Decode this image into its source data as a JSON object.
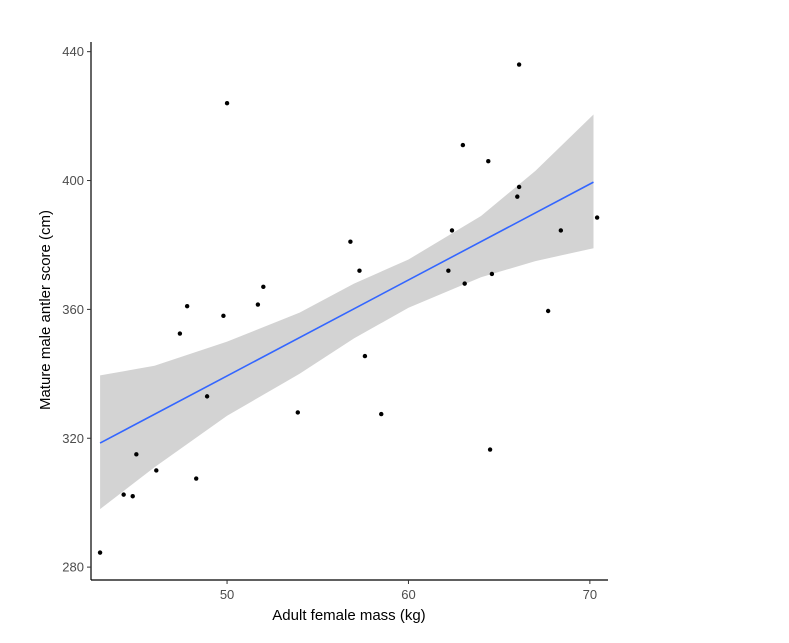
{
  "chart_data": {
    "type": "scatter",
    "xlabel": "Adult female mass (kg)",
    "ylabel": "Mature male antler score (cm)",
    "xlim": [
      42.5,
      71.0
    ],
    "ylim": [
      276,
      443
    ],
    "xticks": [
      50,
      60,
      70
    ],
    "yticks": [
      280,
      320,
      360,
      400,
      440
    ],
    "grid": false,
    "colors": {
      "points": "#000000",
      "fit_line": "#3366ff",
      "confidence_band": "#d3d3d3"
    },
    "points": [
      {
        "x": 43.0,
        "y": 284.5
      },
      {
        "x": 44.3,
        "y": 302.5
      },
      {
        "x": 44.8,
        "y": 302.0
      },
      {
        "x": 45.0,
        "y": 315.0
      },
      {
        "x": 46.1,
        "y": 310.0
      },
      {
        "x": 47.4,
        "y": 352.5
      },
      {
        "x": 47.8,
        "y": 361.0
      },
      {
        "x": 48.3,
        "y": 307.5
      },
      {
        "x": 48.9,
        "y": 333.0
      },
      {
        "x": 49.8,
        "y": 358.0
      },
      {
        "x": 50.0,
        "y": 424.0
      },
      {
        "x": 51.7,
        "y": 361.5
      },
      {
        "x": 52.0,
        "y": 367.0
      },
      {
        "x": 53.9,
        "y": 328.0
      },
      {
        "x": 56.8,
        "y": 381.0
      },
      {
        "x": 57.3,
        "y": 372.0
      },
      {
        "x": 57.6,
        "y": 345.5
      },
      {
        "x": 58.5,
        "y": 327.5
      },
      {
        "x": 62.2,
        "y": 372.0
      },
      {
        "x": 62.4,
        "y": 384.5
      },
      {
        "x": 63.0,
        "y": 411.0
      },
      {
        "x": 63.1,
        "y": 368.0
      },
      {
        "x": 64.4,
        "y": 406.0
      },
      {
        "x": 64.5,
        "y": 316.5
      },
      {
        "x": 64.6,
        "y": 371.0
      },
      {
        "x": 66.0,
        "y": 395.0
      },
      {
        "x": 66.1,
        "y": 398.0
      },
      {
        "x": 66.1,
        "y": 436.0
      },
      {
        "x": 67.7,
        "y": 359.5
      },
      {
        "x": 68.4,
        "y": 384.5
      },
      {
        "x": 70.4,
        "y": 388.5
      }
    ],
    "fit_line": {
      "x": [
        43.0,
        70.2
      ],
      "y": [
        318.5,
        399.5
      ]
    },
    "confidence_band": {
      "x": [
        43.0,
        46.0,
        50.0,
        54.0,
        57.0,
        60.0,
        64.0,
        67.0,
        70.2
      ],
      "lower": [
        298.0,
        311.0,
        327.0,
        340.0,
        351.0,
        360.5,
        370.0,
        375.0,
        379.0
      ],
      "upper": [
        339.5,
        342.5,
        350.0,
        359.0,
        368.0,
        375.5,
        389.0,
        403.0,
        420.5
      ]
    }
  }
}
